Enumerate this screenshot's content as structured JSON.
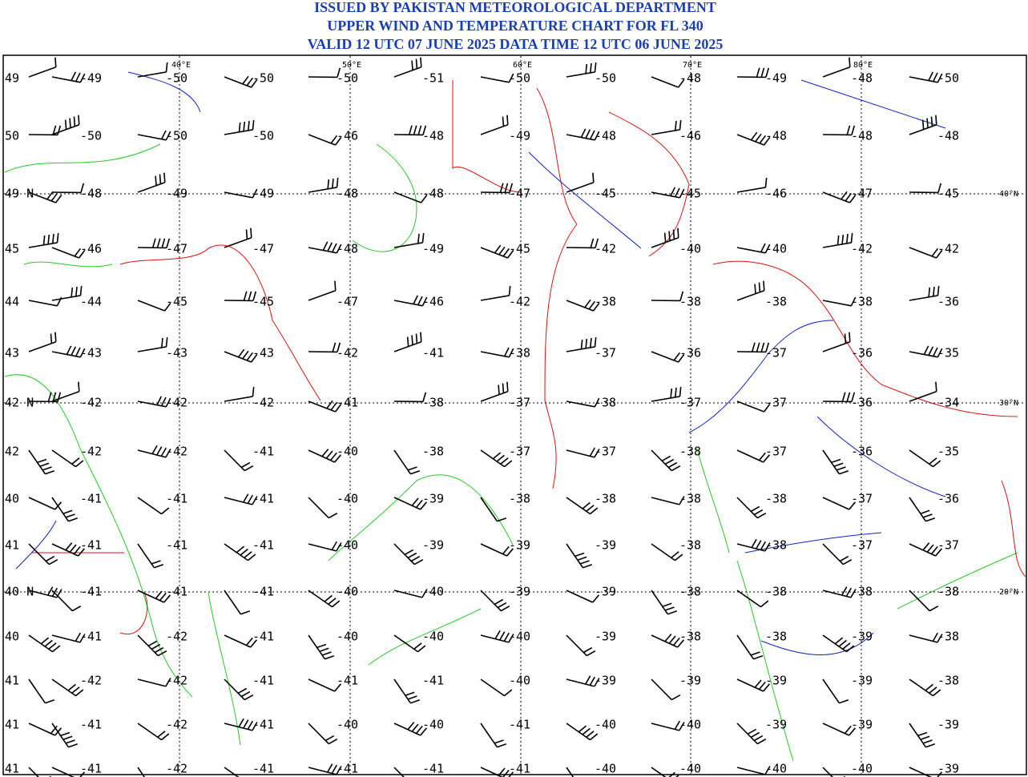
{
  "header": {
    "lines": [
      "ISSUED BY PAKISTAN METEOROLOGICAL DEPARTMENT",
      "UPPER WIND AND TEMPERATURE CHART FOR FL 340",
      "VALID 12 UTC 07 JUNE 2025 DATA TIME 12 UTC 06 JUNE 2025"
    ]
  },
  "map": {
    "lon_labels": [
      "40°E",
      "50°E",
      "60°E",
      "70°E",
      "80°E"
    ],
    "lat_labels": [
      "40°N",
      "30°N",
      "20°N"
    ],
    "rows": [
      [
        "49",
        "-49",
        "-50",
        "-50",
        "-50",
        "-51",
        "-50",
        "-50",
        "-48",
        "-49",
        "-48",
        "-50"
      ],
      [
        "50",
        "-50",
        "-50",
        "-50",
        "-46",
        "-48",
        "-49",
        "-48",
        "-46",
        "-48",
        "-48",
        "-48"
      ],
      [
        "49 N",
        "-48",
        "-49",
        "-49",
        "-48",
        "-48",
        "-47",
        "-45",
        "-45",
        "-46",
        "-47",
        "-45"
      ],
      [
        "45",
        "-46",
        "-47",
        "-47",
        "-48",
        "-49",
        "-45",
        "-42",
        "-40",
        "-40",
        "-42",
        "-42"
      ],
      [
        "44",
        "-44",
        "-45",
        "-45",
        "-47",
        "-46",
        "-42",
        "-38",
        "-38",
        "-38",
        "-38",
        "-36"
      ],
      [
        "43",
        "-43",
        "-43",
        "-43",
        "-42",
        "-41",
        "-38",
        "-37",
        "-36",
        "-37",
        "-36",
        "-35"
      ],
      [
        "42 N",
        "-42",
        "-42",
        "-42",
        "-41",
        "-38",
        "-37",
        "-38",
        "-37",
        "-37",
        "-36",
        "-34"
      ],
      [
        "42",
        "-42",
        "-42",
        "-41",
        "-40",
        "-38",
        "-37",
        "-37",
        "-38",
        "-37",
        "-36",
        "-35"
      ],
      [
        "40",
        "-41",
        "-41",
        "-41",
        "-40",
        "-39",
        "-38",
        "-38",
        "-38",
        "-38",
        "-37",
        "-36"
      ],
      [
        "41",
        "-41",
        "-41",
        "-41",
        "-40",
        "-39",
        "-39",
        "-39",
        "-38",
        "-38",
        "-37",
        "-37"
      ],
      [
        "40 N",
        "-41",
        "-41",
        "-41",
        "-40",
        "-40",
        "-39",
        "-39",
        "-38",
        "-38",
        "-38",
        "-38"
      ],
      [
        "40",
        "-41",
        "-42",
        "-41",
        "-40",
        "-40",
        "-40",
        "-39",
        "-38",
        "-38",
        "-39",
        "-38"
      ],
      [
        "41",
        "-42",
        "-42",
        "-41",
        "-41",
        "-41",
        "-40",
        "-39",
        "-39",
        "-39",
        "-39",
        "-38"
      ],
      [
        "41",
        "-41",
        "-42",
        "-41",
        "-40",
        "-40",
        "-41",
        "-40",
        "-40",
        "-39",
        "-39",
        "-39"
      ],
      [
        "41",
        "-41",
        "-42",
        "-41",
        "-41",
        "-41",
        "-41",
        "-40",
        "-40",
        "-40",
        "-40",
        "-39"
      ]
    ]
  }
}
